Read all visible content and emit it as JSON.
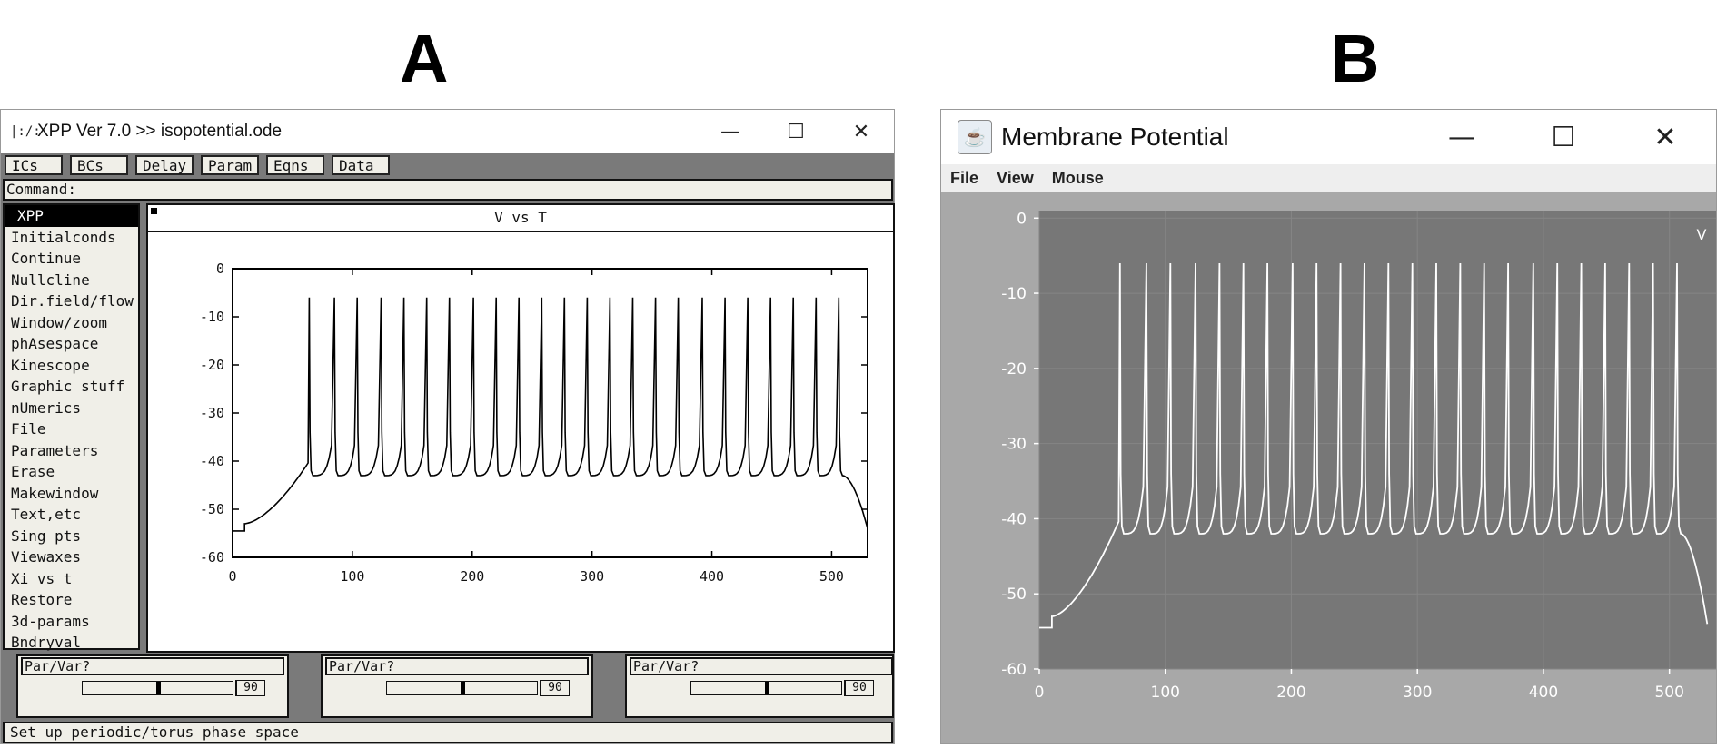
{
  "panels": {
    "a": "A",
    "b": "B"
  },
  "xpp": {
    "window_title": "XPP Ver 7.0 >> isopotential.ode",
    "window_icon": "xpp-app-icon",
    "top_buttons": [
      "ICs",
      "BCs",
      "Delay",
      "Param",
      "Eqns",
      "Data"
    ],
    "command_label": "Command:",
    "menu_items": [
      "XPP",
      "Initialconds",
      "Continue",
      "Nullcline",
      "Dir.field/flow",
      "Window/zoom",
      "phAsespace",
      "Kinescope",
      "Graphic stuff",
      "nUmerics",
      "File",
      "Parameters",
      "Erase",
      "Makewindow",
      "Text,etc",
      "Sing pts",
      "Viewaxes",
      "Xi vs t",
      "Restore",
      "3d-params",
      "Bndryval"
    ],
    "graph_title": "V vs T",
    "sliders": [
      {
        "label": "Par/Var?",
        "value": "90",
        "position": 0.5
      },
      {
        "label": "Par/Var?",
        "value": "90",
        "position": 0.5
      },
      {
        "label": "Par/Var?",
        "value": "90",
        "position": 0.5
      }
    ],
    "status": "Set up periodic/torus phase space",
    "colors": {
      "panel_bg": "#f0efe8",
      "frame_bg": "#7a7a7a"
    }
  },
  "java": {
    "window_title": "Membrane Potential",
    "window_icon": "java-coffee-icon",
    "menu": [
      "File",
      "View",
      "Mouse"
    ],
    "series_label": "V",
    "colors": {
      "plot_bg": "#777777",
      "frame_bg": "#a8a8a8",
      "trace": "#ffffff"
    }
  },
  "chart_data": [
    {
      "type": "line",
      "title": "V vs T",
      "xlim": [
        0,
        530
      ],
      "ylim": [
        -60,
        0
      ],
      "xticks": [
        0,
        100,
        200,
        300,
        400,
        500
      ],
      "yticks": [
        0,
        -10,
        -20,
        -30,
        -40,
        -50,
        -60
      ],
      "series": [
        {
          "x": [
            0,
            10,
            12,
            20,
            30,
            40,
            50,
            58,
            63,
            64
          ],
          "y": [
            -54.5,
            -54.5,
            -53,
            -50,
            -48,
            -46,
            -43,
            -39,
            -30,
            -5.5
          ],
          "spike_times": [
            64,
            85,
            104,
            124,
            143,
            162,
            181,
            201,
            220,
            239,
            258,
            277,
            296,
            315,
            334,
            353,
            372,
            392,
            411,
            430,
            449,
            468,
            487,
            506
          ],
          "spike_peak": -6,
          "trough": -43,
          "end": {
            "x": 530,
            "y": -54
          }
        }
      ],
      "grid": false
    },
    {
      "type": "line",
      "title": "",
      "xlim": [
        0,
        530
      ],
      "ylim": [
        -60,
        0
      ],
      "xticks": [
        0,
        100,
        200,
        300,
        400,
        500
      ],
      "yticks": [
        0,
        -10,
        -20,
        -30,
        -40,
        -50,
        -60
      ],
      "series": [
        {
          "name": "V",
          "spike_times": [
            64,
            85,
            104,
            124,
            143,
            162,
            181,
            201,
            220,
            239,
            258,
            277,
            296,
            315,
            334,
            353,
            372,
            392,
            411,
            430,
            449,
            468,
            487,
            506
          ],
          "spike_peak": -6,
          "trough": -42,
          "end": {
            "x": 530,
            "y": -54
          }
        }
      ],
      "grid": true
    }
  ]
}
